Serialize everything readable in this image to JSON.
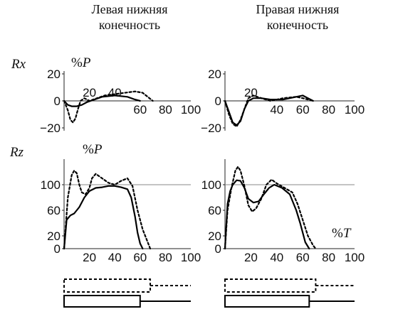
{
  "headers": {
    "left_line1": "Левая нижняя",
    "left_line2": "конечность",
    "right_line1": "Правая нижняя",
    "right_line2": "конечность"
  },
  "row_labels": {
    "rx": "Rx",
    "rz": "Rz"
  },
  "units": {
    "rx_y_percent": "%",
    "rx_y_symbol": "P",
    "rz_y_percent": "%",
    "rz_y_symbol": "P",
    "rz_x_percent": "%",
    "rz_x_symbol": "T"
  },
  "chart_data": [
    {
      "type": "line",
      "id": "rx-left",
      "xlim": [
        0,
        100
      ],
      "ylim": [
        -20,
        20
      ],
      "y_ticks": [
        "20",
        "0",
        "−20"
      ],
      "x_ticks_above": [
        "20",
        "40"
      ],
      "x_ticks_below": [
        "60",
        "80",
        "100"
      ],
      "series": [
        {
          "style": "solid",
          "x": [
            0,
            3,
            6,
            10,
            14,
            18,
            24,
            30,
            40,
            50,
            56,
            60
          ],
          "y": [
            0,
            -3,
            -4,
            -4,
            -3,
            -1,
            1,
            3,
            4,
            3,
            1,
            0
          ]
        },
        {
          "style": "dotted",
          "x": [
            0,
            3,
            5,
            7,
            9,
            11,
            13,
            16,
            20,
            26,
            32,
            40,
            48,
            56,
            62,
            66,
            70
          ],
          "y": [
            0,
            -7,
            -14,
            -16,
            -13,
            -6,
            0,
            2,
            0,
            2,
            4,
            5,
            6,
            7,
            6,
            3,
            0
          ]
        }
      ]
    },
    {
      "type": "line",
      "id": "rx-right",
      "xlim": [
        0,
        100
      ],
      "ylim": [
        -20,
        20
      ],
      "y_ticks": [
        "20",
        "0",
        "−20"
      ],
      "x_ticks_above": [
        "20"
      ],
      "x_ticks_below": [
        "40",
        "60",
        "80",
        "100"
      ],
      "series": [
        {
          "style": "solid",
          "x": [
            0,
            3,
            6,
            9,
            12,
            15,
            18,
            22,
            28,
            35,
            45,
            55,
            60,
            64,
            68
          ],
          "y": [
            0,
            -8,
            -16,
            -18,
            -15,
            -6,
            0,
            2,
            2,
            1,
            1,
            3,
            4,
            2,
            0
          ]
        },
        {
          "style": "dotted",
          "x": [
            0,
            3,
            6,
            9,
            12,
            15,
            18,
            22,
            28,
            35,
            45,
            55,
            60,
            64,
            68
          ],
          "y": [
            0,
            -10,
            -17,
            -19,
            -14,
            -6,
            2,
            4,
            2,
            0,
            2,
            3,
            2,
            1,
            0
          ]
        }
      ]
    },
    {
      "type": "line",
      "id": "rz-left",
      "xlim": [
        0,
        100
      ],
      "ylim": [
        0,
        140
      ],
      "y_ticks": [
        "100",
        "60",
        "20",
        "0"
      ],
      "x_ticks_below": [
        "20",
        "40",
        "60",
        "80",
        "100"
      ],
      "reference_line": 100,
      "series": [
        {
          "style": "solid",
          "x": [
            0,
            2,
            5,
            8,
            12,
            16,
            20,
            25,
            30,
            35,
            40,
            45,
            50,
            53,
            56,
            58,
            60,
            62
          ],
          "y": [
            0,
            45,
            52,
            55,
            65,
            80,
            90,
            95,
            96,
            98,
            98,
            96,
            93,
            80,
            50,
            25,
            8,
            0
          ]
        },
        {
          "style": "dotted",
          "x": [
            0,
            3,
            6,
            8,
            10,
            12,
            14,
            17,
            20,
            22,
            25,
            30,
            35,
            40,
            45,
            50,
            54,
            58,
            62,
            66,
            68
          ],
          "y": [
            0,
            80,
            115,
            122,
            118,
            100,
            88,
            85,
            95,
            110,
            117,
            110,
            103,
            100,
            106,
            110,
            98,
            60,
            30,
            10,
            0
          ]
        }
      ]
    },
    {
      "type": "line",
      "id": "rz-right",
      "xlim": [
        0,
        100
      ],
      "ylim": [
        0,
        140
      ],
      "y_ticks": [
        "100",
        "60",
        "20",
        "0"
      ],
      "x_ticks_below": [
        "20",
        "40",
        "60",
        "80",
        "100"
      ],
      "reference_line": 100,
      "series": [
        {
          "style": "solid",
          "x": [
            0,
            2,
            4,
            6,
            9,
            12,
            15,
            18,
            22,
            26,
            30,
            34,
            38,
            44,
            50,
            55,
            58,
            62,
            65
          ],
          "y": [
            0,
            70,
            90,
            100,
            107,
            106,
            95,
            78,
            72,
            74,
            85,
            95,
            100,
            95,
            85,
            60,
            40,
            10,
            0
          ]
        },
        {
          "style": "dotted",
          "x": [
            0,
            2,
            5,
            8,
            10,
            12,
            15,
            18,
            21,
            24,
            28,
            32,
            36,
            40,
            46,
            52,
            56,
            60,
            64,
            68,
            70
          ],
          "y": [
            0,
            60,
            95,
            122,
            128,
            122,
            98,
            68,
            58,
            63,
            78,
            100,
            108,
            102,
            95,
            88,
            70,
            45,
            20,
            5,
            0
          ]
        }
      ]
    }
  ],
  "phase_bars": {
    "left": {
      "dotted_stance_end": 68,
      "solid_stance_end": 60
    },
    "right": {
      "dotted_stance_end": 70,
      "solid_stance_end": 65
    }
  }
}
